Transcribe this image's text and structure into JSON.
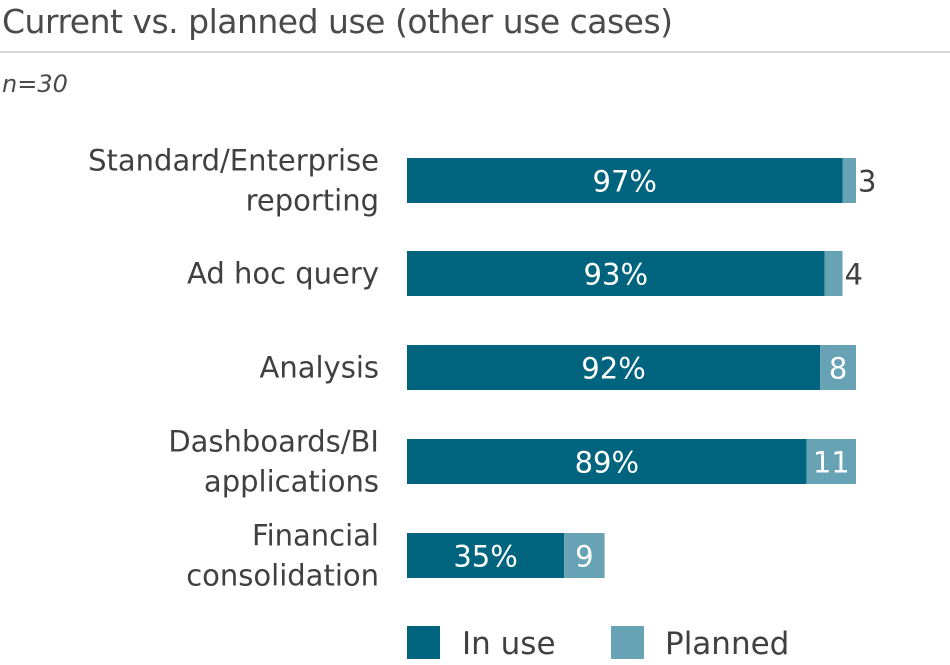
{
  "header": {
    "title": "Current vs. planned use (other use cases)",
    "subtitle": "n=30"
  },
  "chart_data": {
    "type": "bar",
    "orientation": "horizontal",
    "stacked": true,
    "title": "Current vs. planned use (other use cases)",
    "subtitle": "n=30",
    "categories": [
      [
        "Standard/Enterprise",
        "reporting"
      ],
      [
        "Ad hoc query"
      ],
      [
        "Analysis"
      ],
      [
        "Dashboards/BI",
        "applications"
      ],
      [
        "Financial",
        "consolidation"
      ]
    ],
    "series": [
      {
        "name": "In use",
        "color": "#00647f",
        "values": [
          97,
          93,
          92,
          89,
          35
        ],
        "labels": [
          "97%",
          "93%",
          "92%",
          "89%",
          "35%"
        ]
      },
      {
        "name": "Planned",
        "color": "#68a3b5",
        "values": [
          3,
          4,
          8,
          11,
          9
        ],
        "labels": [
          "3",
          "4",
          "8",
          "11",
          "9"
        ]
      }
    ],
    "xlim": [
      0,
      100
    ],
    "grid": false,
    "legend": "bottom",
    "legend_entries": [
      "In use",
      "Planned"
    ]
  }
}
